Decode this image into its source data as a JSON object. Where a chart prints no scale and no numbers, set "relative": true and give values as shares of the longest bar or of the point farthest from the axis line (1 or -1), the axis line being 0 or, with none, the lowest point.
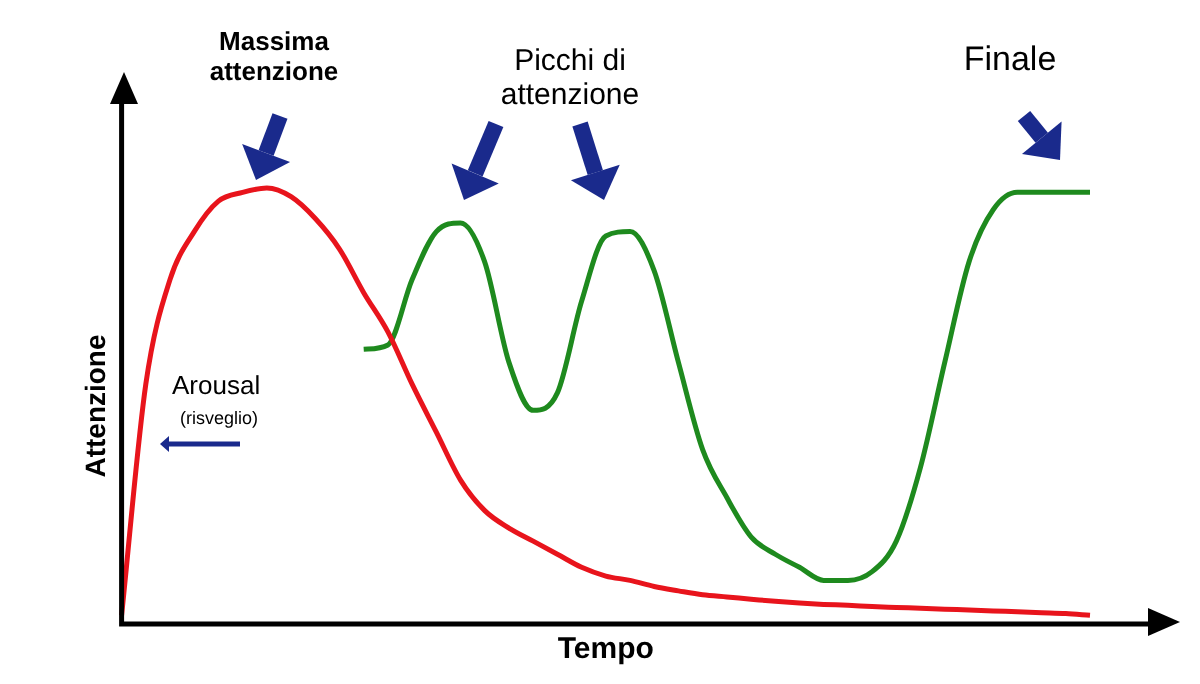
{
  "chart_data": {
    "type": "line",
    "relative": true,
    "xlabel": "Tempo",
    "ylabel": "Attenzione",
    "grid": false,
    "legend": false,
    "marker": "none",
    "line_style": "solid",
    "annotations": [
      "Massima attenzione",
      "Picchi di attenzione",
      "Finale",
      "Arousal",
      "(risveglio)"
    ],
    "categories": [
      null,
      null,
      null,
      null,
      null,
      null,
      null,
      null,
      null,
      null,
      null,
      null,
      null,
      null,
      null,
      null,
      null,
      null,
      null,
      null,
      null,
      null,
      null,
      null,
      null,
      null,
      null,
      null,
      null,
      null,
      null,
      null,
      null,
      null,
      null,
      null,
      null,
      null,
      null,
      null,
      null
    ],
    "series": [
      {
        "color": "#e8141c",
        "values": [
          0.02,
          0.55,
          0.79,
          0.9,
          0.97,
          0.99,
          1.0,
          0.98,
          0.93,
          0.86,
          0.76,
          0.67,
          0.55,
          0.44,
          0.33,
          0.26,
          0.22,
          0.19,
          0.16,
          0.13,
          0.11,
          0.1,
          0.086,
          0.076,
          0.067,
          0.062,
          0.057,
          0.052,
          0.048,
          0.045,
          0.043,
          0.04,
          0.038,
          0.036,
          0.034,
          0.032,
          0.03,
          0.028,
          0.026,
          0.024,
          0.02
        ]
      },
      {
        "color": "#1e8a1e",
        "values": [
          null,
          null,
          null,
          null,
          null,
          null,
          null,
          null,
          null,
          null,
          0.63,
          0.64,
          0.79,
          0.9,
          0.92,
          0.83,
          0.6,
          0.49,
          0.53,
          0.74,
          0.89,
          0.9,
          0.81,
          0.6,
          0.4,
          0.29,
          0.2,
          0.16,
          0.13,
          0.1,
          0.1,
          0.12,
          0.19,
          0.36,
          0.6,
          0.83,
          0.95,
          0.99,
          0.99,
          0.99,
          0.99
        ]
      }
    ]
  }
}
